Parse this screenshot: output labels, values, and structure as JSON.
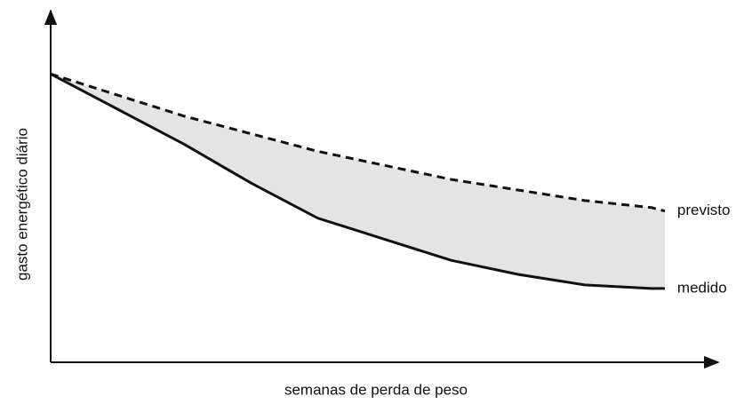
{
  "chart_data": {
    "type": "line",
    "xlabel": "semanas de perda de peso",
    "ylabel": "gasto energético diário",
    "x": [
      0,
      1,
      2,
      3,
      4,
      5,
      6,
      7,
      8,
      9,
      9.2
    ],
    "series": [
      {
        "name": "previsto",
        "color": "#111111",
        "style": "dashed",
        "values": [
          82,
          76,
          70,
          65,
          60,
          56,
          52,
          49,
          46,
          44,
          43
        ]
      },
      {
        "name": "medido",
        "color": "#111111",
        "style": "solid",
        "values": [
          82,
          72,
          62,
          51,
          41,
          35,
          29,
          25,
          22,
          21,
          21
        ]
      }
    ],
    "fill_between": "#e4e4e4",
    "xlim": [
      0,
      10
    ],
    "ylim": [
      0,
      100
    ]
  }
}
